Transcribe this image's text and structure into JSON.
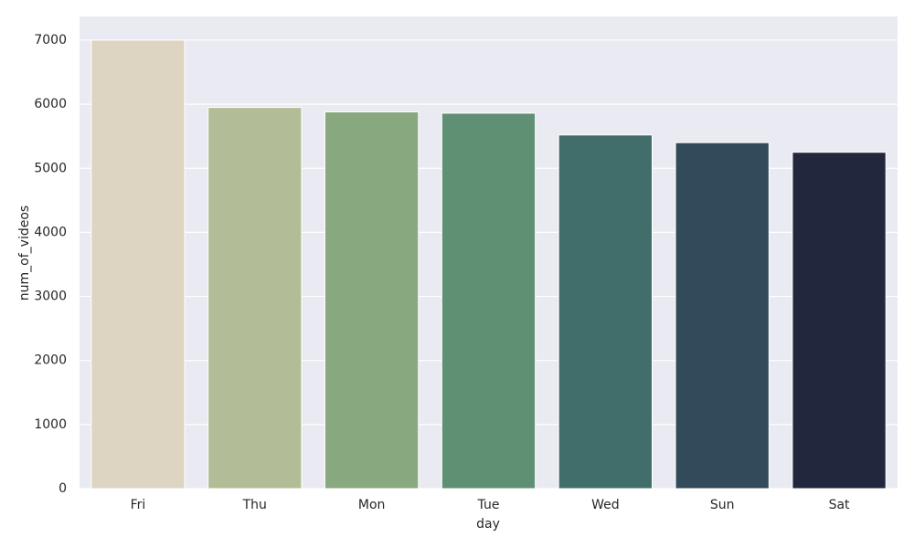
{
  "chart_data": {
    "type": "bar",
    "x_label": "day",
    "y_label": "num_of_videos",
    "categories": [
      "Fri",
      "Thu",
      "Mon",
      "Tue",
      "Wed",
      "Sun",
      "Sat"
    ],
    "values": [
      7000,
      5950,
      5880,
      5860,
      5520,
      5400,
      5250
    ],
    "colors": [
      "#ddd5c2",
      "#b2bd97",
      "#88a87f",
      "#5f9074",
      "#416e6a",
      "#324a59",
      "#23273d"
    ],
    "ylim": [
      0,
      7370
    ],
    "yticks": [
      0,
      1000,
      2000,
      3000,
      4000,
      5000,
      6000,
      7000
    ],
    "grid": true,
    "background": "#eaeaf2"
  }
}
